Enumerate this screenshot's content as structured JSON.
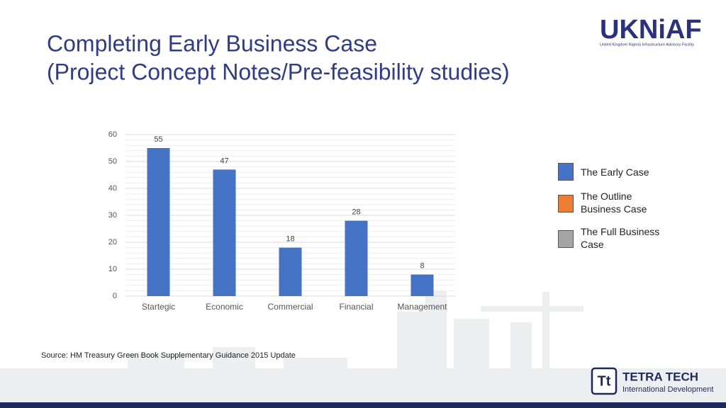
{
  "slide": {
    "title_lines": [
      "Completing Early Business Case",
      "(Project Concept Notes/Pre-feasibility studies)"
    ],
    "source": "Source: HM Treasury Green Book Supplementary Guidance 2015 Update",
    "logo_top": "UKNiAF",
    "logo_top_caption": "United Kingdom Nigeria Infrastructure Advisory Facility",
    "logo_bottom_mark": "Tt",
    "logo_bottom": "TETRA TECH",
    "logo_bottom_caption": "International Development"
  },
  "chart_data": {
    "type": "bar",
    "categories": [
      "Startegic",
      "Economic",
      "Commercial",
      "Financial",
      "Management"
    ],
    "series": [
      {
        "name": "The Early Case",
        "color": "#4472c4",
        "values": [
          55,
          47,
          18,
          28,
          8
        ]
      },
      {
        "name": "The Outline Business Case",
        "color": "#ed7d31",
        "values": [
          null,
          null,
          null,
          null,
          null
        ]
      },
      {
        "name": "The Full Business Case",
        "color": "#a5a5a5",
        "values": [
          null,
          null,
          null,
          null,
          null
        ]
      }
    ],
    "ylim": [
      0,
      60
    ],
    "yticks": [
      0,
      10,
      20,
      30,
      40,
      50,
      60
    ],
    "grid": true,
    "legend": "right"
  }
}
